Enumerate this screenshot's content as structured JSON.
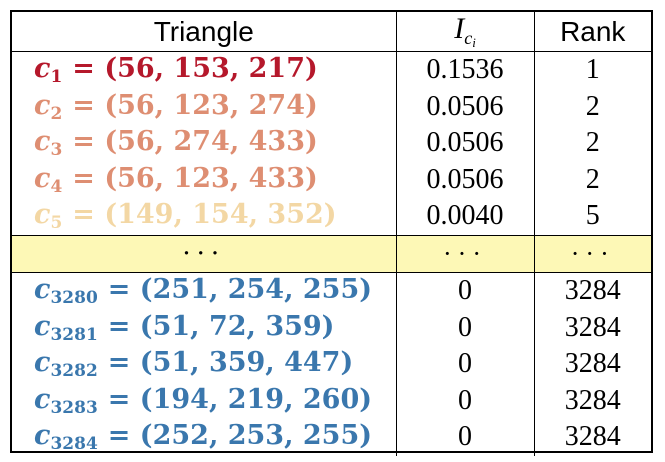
{
  "headers": {
    "triangle": "Triangle",
    "ic_base": "I",
    "ic_sub": "c",
    "ic_subsub": "i",
    "rank": "Rank"
  },
  "rows": [
    {
      "var": "c",
      "sub": "1",
      "tuple": "= (56, 153, 217)",
      "ic": "0.1536",
      "rank": "1",
      "color": "#b5182b"
    },
    {
      "var": "c",
      "sub": "2",
      "tuple": "= (56, 123, 274)",
      "ic": "0.0506",
      "rank": "2",
      "color": "#de8e72"
    },
    {
      "var": "c",
      "sub": "3",
      "tuple": "= (56, 274, 433)",
      "ic": "0.0506",
      "rank": "2",
      "color": "#de8e72"
    },
    {
      "var": "c",
      "sub": "4",
      "tuple": "= (56, 123, 433)",
      "ic": "0.0506",
      "rank": "2",
      "color": "#de8e72"
    },
    {
      "var": "c",
      "sub": "5",
      "tuple": "= (149, 154, 352)",
      "ic": "0.0040",
      "rank": "5",
      "color": "#f3d7a4"
    }
  ],
  "ellipsis": {
    "triangle": "···",
    "ic": "···",
    "rank": "···",
    "bg_color": "#fdf8b6"
  },
  "rows_bottom": [
    {
      "var": "c",
      "sub": "3280",
      "tuple": "= (251, 254, 255)",
      "ic": "0",
      "rank": "3284",
      "color": "#3a77ad"
    },
    {
      "var": "c",
      "sub": "3281",
      "tuple": "= (51, 72, 359)",
      "ic": "0",
      "rank": "3284",
      "color": "#3a77ad"
    },
    {
      "var": "c",
      "sub": "3282",
      "tuple": "= (51, 359, 447)",
      "ic": "0",
      "rank": "3284",
      "color": "#3a77ad"
    },
    {
      "var": "c",
      "sub": "3283",
      "tuple": "= (194, 219, 260)",
      "ic": "0",
      "rank": "3284",
      "color": "#3a77ad"
    },
    {
      "var": "c",
      "sub": "3284",
      "tuple": "= (252, 253, 255)",
      "ic": "0",
      "rank": "3284",
      "color": "#3a77ad"
    }
  ]
}
